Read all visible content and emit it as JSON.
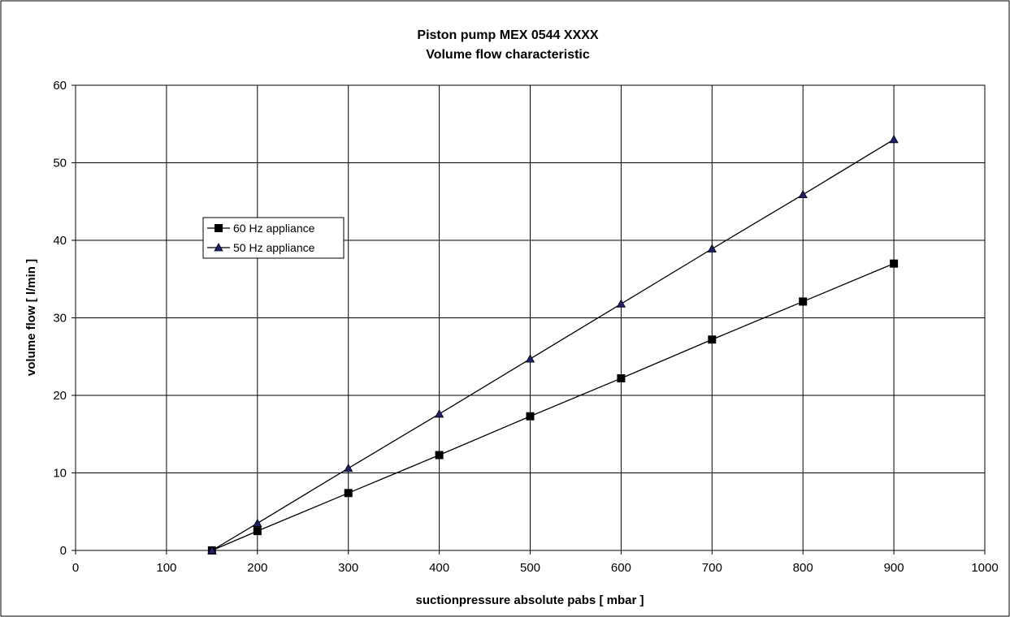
{
  "chart_data": {
    "type": "line",
    "title_line1": "Piston pump MEX 0544 XXXX",
    "title_line2": "Volume flow characteristic",
    "xlabel": "suctionpressure absolute pabs [ mbar ]",
    "ylabel": "volume flow [ l/min ]",
    "xlim": [
      0,
      1000
    ],
    "ylim": [
      0,
      60
    ],
    "x_ticks": [
      0,
      100,
      200,
      300,
      400,
      500,
      600,
      700,
      800,
      900,
      1000
    ],
    "y_ticks": [
      0,
      10,
      20,
      30,
      40,
      50,
      60
    ],
    "grid": true,
    "legend_position": "middle-left",
    "series": [
      {
        "name": "60 Hz appliance",
        "marker": "square",
        "color": "#000000",
        "x": [
          150,
          200,
          300,
          400,
          500,
          600,
          700,
          800,
          900
        ],
        "y": [
          0,
          2.5,
          7.4,
          12.3,
          17.3,
          22.2,
          27.2,
          32.1,
          37.0
        ]
      },
      {
        "name": "50 Hz appliance",
        "marker": "triangle",
        "color": "#000000",
        "marker_fill": "#1f1f6e",
        "x": [
          150,
          200,
          300,
          400,
          500,
          600,
          700,
          800,
          900
        ],
        "y": [
          0,
          3.5,
          10.6,
          17.6,
          24.7,
          31.8,
          38.9,
          45.9,
          53.0
        ]
      }
    ]
  }
}
